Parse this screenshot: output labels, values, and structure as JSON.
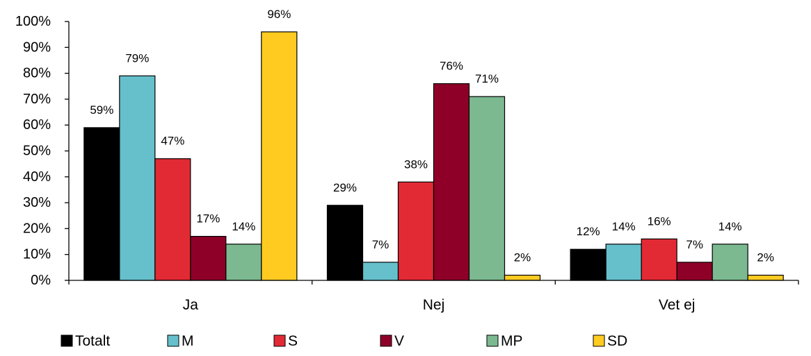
{
  "chart_data": {
    "type": "bar",
    "categories": [
      "Ja",
      "Nej",
      "Vet ej"
    ],
    "series": [
      {
        "name": "Totalt",
        "color": "#000000",
        "values": [
          59,
          29,
          12
        ]
      },
      {
        "name": "M",
        "color": "#65C0CC",
        "values": [
          79,
          7,
          14
        ]
      },
      {
        "name": "S",
        "color": "#E22A35",
        "values": [
          47,
          38,
          16
        ]
      },
      {
        "name": "V",
        "color": "#8E0028",
        "values": [
          17,
          76,
          7
        ]
      },
      {
        "name": "MP",
        "color": "#7CB991",
        "values": [
          14,
          71,
          14
        ]
      },
      {
        "name": "SD",
        "color": "#FFCB21",
        "values": [
          96,
          2,
          2
        ]
      }
    ],
    "ylim": [
      0,
      100
    ],
    "yticks": [
      "0%",
      "10%",
      "20%",
      "30%",
      "40%",
      "50%",
      "60%",
      "70%",
      "80%",
      "90%",
      "100%"
    ],
    "value_suffix": "%",
    "grid": false,
    "legend_position": "bottom"
  }
}
